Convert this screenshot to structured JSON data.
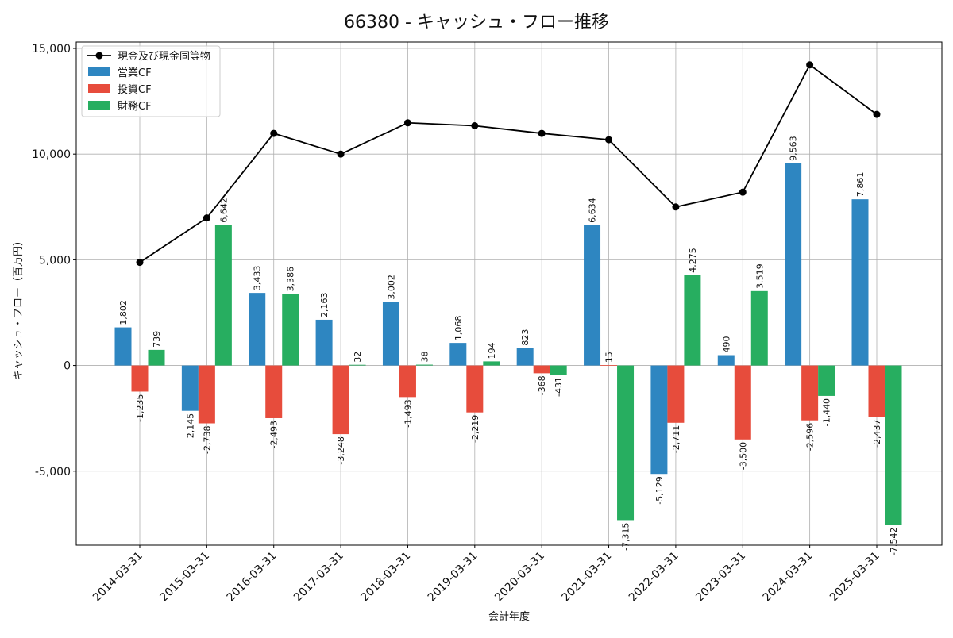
{
  "chart_data": {
    "type": "bar",
    "title": "66380 - キャッシュ・フロー推移",
    "xlabel": "会計年度",
    "ylabel": "キャッシュ・フロー（百万円）",
    "ylim": [
      -8500,
      15300
    ],
    "yticks": [
      -5000,
      0,
      5000,
      10000,
      15000
    ],
    "ytick_labels": [
      "-5,000",
      "0",
      "5,000",
      "10,000",
      "15,000"
    ],
    "grid": true,
    "legend_position": "top-left",
    "categories": [
      "2014-03-31",
      "2015-03-31",
      "2016-03-31",
      "2017-03-31",
      "2018-03-31",
      "2019-03-31",
      "2020-03-31",
      "2021-03-31",
      "2022-03-31",
      "2023-03-31",
      "2024-03-31",
      "2025-03-31"
    ],
    "series": [
      {
        "name": "営業CF",
        "kind": "bar",
        "color": "#2e86c1",
        "values": [
          1802,
          -2145,
          3433,
          2163,
          3002,
          1068,
          823,
          6634,
          -5129,
          490,
          9563,
          7861
        ],
        "labels": [
          "1,802",
          "-2,145",
          "3,433",
          "2,163",
          "3,002",
          "1,068",
          "823",
          "6,634",
          "-5,129",
          "490",
          "9,563",
          "7,861"
        ]
      },
      {
        "name": "投資CF",
        "kind": "bar",
        "color": "#e74c3c",
        "values": [
          -1235,
          -2738,
          -2493,
          -3248,
          -1493,
          -2219,
          -368,
          15,
          -2711,
          -3500,
          -2596,
          -2437
        ],
        "labels": [
          "-1,235",
          "-2,738",
          "-2,493",
          "-3,248",
          "-1,493",
          "-2,219",
          "-368",
          "15",
          "-2,711",
          "-3,500",
          "-2,596",
          "-2,437"
        ]
      },
      {
        "name": "財務CF",
        "kind": "bar",
        "color": "#27ae60",
        "values": [
          739,
          6642,
          3386,
          32,
          38,
          194,
          -431,
          -7315,
          4275,
          3519,
          -1440,
          -7542
        ],
        "labels": [
          "739",
          "6,642",
          "3,386",
          "32",
          "38",
          "194",
          "-431",
          "-7,315",
          "4,275",
          "3,519",
          "-1,440",
          "-7,542"
        ]
      },
      {
        "name": "現金及び現金同等物",
        "kind": "line",
        "color": "#000000",
        "values": [
          4880,
          6980,
          10980,
          10000,
          11480,
          11340,
          10980,
          10680,
          7500,
          8200,
          14220,
          11880
        ]
      }
    ]
  }
}
